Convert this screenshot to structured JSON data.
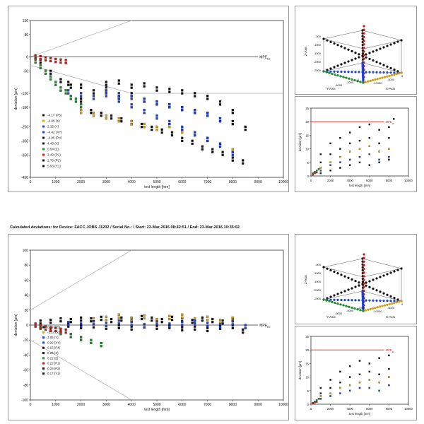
{
  "header_text": "Calculated deviations:  for Device:  FACC JOBS J1202 / Serial No.:  / Start:  23-Mar-2016 08:42:51 / End:  23-Mar-2016 10:35:02",
  "mpe_label": "MPE",
  "mpe_subscript": "E0",
  "colors": {
    "black": "#111111",
    "gold": "#d4a017",
    "blue": "#1f3fd0",
    "green": "#1f8a2a",
    "red": "#c81818",
    "gray": "#b5b5b5",
    "mpe_line": "#9a9a9a",
    "mpe_red": "#e02020"
  },
  "chart_data": [
    {
      "id": "top-main",
      "type": "scatter",
      "xlabel": "test length [mm]",
      "ylabel": "deviation [µm]",
      "xlim": [
        0,
        10000
      ],
      "ylim": [
        -430,
        130
      ],
      "xticks": [
        0,
        1000,
        2000,
        3000,
        4000,
        5000,
        6000,
        7000,
        8000,
        9000,
        10000
      ],
      "yticks": [
        130,
        80,
        0,
        -50,
        -130,
        -180,
        -250,
        -300,
        -350,
        -430
      ],
      "mpe_y": 0,
      "envelope_upper": [
        [
          0,
          0
        ],
        [
          4000,
          130
        ]
      ],
      "envelope_lower": [
        [
          0,
          -30
        ],
        [
          4000,
          -130
        ],
        [
          10000,
          -130
        ]
      ],
      "legend": [
        {
          "label": "-4.17 (P5)",
          "color": "#111111"
        },
        {
          "label": "-4.89 (X)",
          "color": "#d4a017"
        },
        {
          "label": "2.35 (Y)",
          "color": "#1f3fd0"
        },
        {
          "label": "-4.42 (XY)",
          "color": "#1f3fd0"
        },
        {
          "label": "-4.05 (P4)",
          "color": "#111111"
        },
        {
          "label": "4.45 (X)",
          "color": "#111111"
        },
        {
          "label": "0.54 (Z)",
          "color": "#1f8a2a"
        },
        {
          "label": "2.49 (P1)",
          "color": "#c81818"
        },
        {
          "label": "2.76 (P2)",
          "color": "#111111"
        },
        {
          "label": "5.93 (Y1)",
          "color": "#111111"
        }
      ],
      "series": [
        {
          "color": "#111111",
          "x": [
            400,
            800,
            1200,
            1600,
            2000,
            2400,
            2800,
            3200,
            3600,
            4000,
            4400,
            4800,
            5200,
            5600,
            6000,
            6400,
            6800,
            7200,
            7600,
            8000,
            8400
          ],
          "y": [
            -20,
            -60,
            -90,
            -110,
            -160,
            -200,
            -210,
            -220,
            -230,
            -240,
            -250,
            -260,
            -270,
            -280,
            -300,
            -310,
            -330,
            -340,
            -350,
            -370,
            -380
          ]
        },
        {
          "color": "#111111",
          "x": [
            1500,
            2000,
            2500,
            3000,
            3500,
            4000,
            4500,
            5000,
            5500,
            6000,
            6500,
            7000,
            7500,
            8000
          ],
          "y": [
            -100,
            -110,
            -130,
            -120,
            -150,
            -140,
            -160,
            -170,
            -180,
            -190,
            -200,
            -210,
            -230,
            -240
          ]
        },
        {
          "color": "#111111",
          "x": [
            3000,
            3500,
            4000,
            4500,
            5000,
            5500,
            6000,
            6500,
            7000,
            7500,
            8000,
            8500
          ],
          "y": [
            -100,
            -95,
            -110,
            -105,
            -120,
            -125,
            -130,
            -140,
            -150,
            -170,
            -200,
            -260
          ]
        },
        {
          "color": "#d4a017",
          "x": [
            2000,
            2500,
            3000,
            3500,
            4000,
            4500,
            5000,
            5500,
            6000,
            6500,
            7000,
            7500,
            8000
          ],
          "y": [
            -200,
            -210,
            -220,
            -230,
            -240,
            -250,
            -260,
            -250,
            -270,
            -280,
            -300,
            -320,
            -340
          ]
        },
        {
          "color": "#1f3fd0",
          "x": [
            1500,
            2000,
            2500,
            3000,
            3500,
            4000,
            4500,
            5000,
            5500,
            6000,
            6500,
            7000,
            7500,
            8000
          ],
          "y": [
            -130,
            -140,
            -150,
            -140,
            -160,
            -180,
            -200,
            -220,
            -240,
            -260,
            -280,
            -300,
            -320,
            -350
          ]
        },
        {
          "color": "#1f3fd0",
          "x": [
            3000,
            3500,
            4000,
            4500,
            5000,
            5500,
            6000,
            6500,
            7000,
            7500
          ],
          "y": [
            -130,
            -140,
            -150,
            -160,
            -170,
            -180,
            -190,
            -200,
            -210,
            -230
          ]
        },
        {
          "color": "#1f8a2a",
          "x": [
            200,
            400,
            600,
            800,
            1000,
            1200,
            1400,
            1600,
            1800,
            2000
          ],
          "y": [
            -20,
            -40,
            -60,
            -80,
            -100,
            -120,
            -130,
            -150,
            -160,
            -180
          ]
        },
        {
          "color": "#c81818",
          "x": [
            200,
            400,
            600,
            800,
            1000,
            1200,
            1400
          ],
          "y": [
            -5,
            -8,
            -12,
            -15,
            -18,
            -20,
            -22
          ]
        }
      ]
    },
    {
      "id": "bottom-main",
      "type": "scatter",
      "xlabel": "test length [mm]",
      "ylabel": "deviation [µm]",
      "xlim": [
        0,
        10000
      ],
      "ylim": [
        -100,
        100
      ],
      "xticks": [
        0,
        1000,
        2000,
        3000,
        4000,
        5000,
        6000,
        7000,
        8000,
        9000,
        10000
      ],
      "yticks": [
        100,
        80,
        60,
        40,
        20,
        0,
        -20,
        -40,
        -60,
        -80,
        -100
      ],
      "mpe_y": 0,
      "envelope_upper": [
        [
          0,
          20
        ],
        [
          4000,
          100
        ]
      ],
      "envelope_lower": [
        [
          0,
          -20
        ],
        [
          4000,
          -100
        ]
      ],
      "legend": [
        {
          "label": "0.19 (P5)",
          "color": "#111111"
        },
        {
          "label": "-2.14 (X)",
          "color": "#d4a017"
        },
        {
          "label": "3.85 (Y)",
          "color": "#1f3fd0"
        },
        {
          "label": "0.29 (XY)",
          "color": "#1f3fd0"
        },
        {
          "label": "0.15 (P4)",
          "color": "#111111"
        },
        {
          "label": "0.28 (X)",
          "color": "#111111"
        },
        {
          "label": "0.22 (Z)",
          "color": "#1f8a2a"
        },
        {
          "label": "0.22 (P1)",
          "color": "#c81818"
        },
        {
          "label": "0.28 (P2)",
          "color": "#111111"
        },
        {
          "label": "0.17 (Y1)",
          "color": "#111111"
        }
      ],
      "series": [
        {
          "color": "#111111",
          "x": [
            400,
            800,
            1200,
            1600,
            2000,
            2400,
            2800,
            3200,
            3600,
            4000,
            4400,
            4800,
            5200,
            5600,
            6000,
            6400,
            6800,
            7200,
            7600,
            8000,
            8400
          ],
          "y": [
            2,
            3,
            5,
            4,
            6,
            5,
            7,
            4,
            6,
            5,
            8,
            6,
            4,
            7,
            5,
            3,
            6,
            4,
            2,
            5,
            -10
          ]
        },
        {
          "color": "#111111",
          "x": [
            1500,
            2000,
            2500,
            3000,
            3500,
            4000,
            4500,
            5000,
            5500,
            6000,
            6500,
            7000,
            7500,
            8000
          ],
          "y": [
            -2,
            -4,
            -3,
            -5,
            -4,
            -6,
            -3,
            -5,
            -4,
            -7,
            -6,
            -8,
            -5,
            -4
          ]
        },
        {
          "color": "#d4a017",
          "x": [
            2500,
            3000,
            3500,
            4000,
            4500,
            5000,
            5500,
            6000,
            6500,
            7000,
            7500,
            8000
          ],
          "y": [
            5,
            7,
            10,
            6,
            9,
            4,
            8,
            10,
            5,
            7,
            3,
            6
          ]
        },
        {
          "color": "#1f3fd0",
          "x": [
            1500,
            2000,
            2500,
            3000,
            3500,
            4000,
            4500,
            5000,
            5500,
            6000,
            6500,
            7000,
            7500,
            8000,
            8500
          ],
          "y": [
            0,
            -2,
            1,
            -1,
            2,
            0,
            -3,
            1,
            -2,
            0,
            2,
            -1,
            -3,
            1,
            -4
          ]
        },
        {
          "color": "#1f8a2a",
          "x": [
            400,
            800,
            1200,
            1600,
            2000,
            2400,
            2800
          ],
          "y": [
            -5,
            -8,
            -12,
            -16,
            -20,
            -24,
            -28
          ]
        },
        {
          "color": "#c81818",
          "x": [
            200,
            400,
            600,
            800,
            1000,
            1200,
            1400
          ],
          "y": [
            -2,
            -4,
            -6,
            -7,
            -8,
            -9,
            -10
          ]
        }
      ]
    },
    {
      "id": "top-small",
      "type": "scatter",
      "xlabel": "test length [mm]",
      "ylabel": "deviation [µm]",
      "xlim": [
        0,
        10000
      ],
      "ylim": [
        0,
        25
      ],
      "xticks": [
        0,
        2000,
        4000,
        6000,
        8000,
        10000
      ],
      "yticks": [
        0,
        5,
        10,
        15,
        20,
        25
      ],
      "mpe_y": 20,
      "series": [
        {
          "color": "#111111",
          "x": [
            1000,
            2000,
            3000,
            4000,
            5000,
            6000,
            7000,
            8000
          ],
          "y": [
            8,
            12,
            14,
            16,
            18,
            19,
            17,
            18
          ]
        },
        {
          "color": "#111111",
          "x": [
            1000,
            2000,
            3000,
            4000,
            5000,
            6000,
            7000,
            8000
          ],
          "y": [
            5,
            8,
            10,
            12,
            13,
            14,
            12,
            14
          ]
        },
        {
          "color": "#d4a017",
          "x": [
            1000,
            2000,
            3000,
            4000,
            5000,
            6000,
            7000,
            8000
          ],
          "y": [
            3,
            5,
            7,
            9,
            10,
            11,
            9,
            10
          ]
        },
        {
          "color": "#1f3fd0",
          "x": [
            1000,
            2000,
            3000,
            4000,
            5000,
            6000,
            7000,
            8000
          ],
          "y": [
            2,
            4,
            5,
            6,
            7,
            8,
            6,
            7
          ]
        },
        {
          "color": "#111111",
          "x": [
            1000,
            2000,
            3000,
            4000,
            5000,
            6000,
            7000,
            8000,
            8500
          ],
          "y": [
            1,
            2,
            3,
            4,
            5,
            4,
            5,
            6,
            21
          ]
        },
        {
          "color": "#1f8a2a",
          "x": [
            200,
            400,
            600,
            800
          ],
          "y": [
            1,
            1.5,
            2,
            2.5
          ]
        },
        {
          "color": "#c81818",
          "x": [
            200,
            400,
            600
          ],
          "y": [
            0.5,
            1,
            1.3
          ]
        }
      ]
    },
    {
      "id": "bottom-small",
      "type": "scatter",
      "xlabel": "test length [mm]",
      "ylabel": "deviation [µm]",
      "xlim": [
        0,
        10000
      ],
      "ylim": [
        0,
        25
      ],
      "xticks": [
        0,
        2000,
        4000,
        6000,
        8000,
        10000
      ],
      "yticks": [
        0,
        5,
        10,
        15,
        20,
        25
      ],
      "mpe_y": 20,
      "series": [
        {
          "color": "#111111",
          "x": [
            1000,
            2000,
            3000,
            4000,
            5000,
            6000,
            7000,
            8000
          ],
          "y": [
            6,
            9,
            12,
            14,
            16,
            15,
            17,
            18
          ]
        },
        {
          "color": "#111111",
          "x": [
            1000,
            2000,
            3000,
            4000,
            5000,
            6000,
            7000,
            8000
          ],
          "y": [
            4,
            6,
            8,
            10,
            11,
            12,
            11,
            13
          ]
        },
        {
          "color": "#d4a017",
          "x": [
            1000,
            2000,
            3000,
            4000,
            5000,
            6000,
            7000,
            8000
          ],
          "y": [
            3,
            4,
            6,
            7,
            8,
            9,
            8,
            10
          ]
        },
        {
          "color": "#1f3fd0",
          "x": [
            1000,
            2000,
            3000,
            4000,
            5000,
            6000,
            7000,
            8000
          ],
          "y": [
            2,
            3,
            4,
            5,
            6,
            6,
            5,
            7
          ]
        },
        {
          "color": "#1f8a2a",
          "x": [
            200,
            400,
            600,
            800
          ],
          "y": [
            0.5,
            1,
            1.5,
            2
          ]
        },
        {
          "color": "#c81818",
          "x": [
            200,
            400,
            600
          ],
          "y": [
            0.3,
            0.6,
            0.9
          ]
        }
      ]
    }
  ],
  "cube_top": {
    "z_ticks": [
      "-500",
      "-1000",
      "-1500",
      "-2000",
      "-2500"
    ],
    "z_label": "Z-Axis",
    "x_label": "X-Axis",
    "y_label": "Y-Axis",
    "x_ticks": [
      "-10000",
      "-5000",
      "0"
    ],
    "y_ticks": [
      "-4000",
      "-2000",
      "0"
    ]
  },
  "cube_bottom": {
    "z_ticks": [
      "-500",
      "-1000",
      "-1500",
      "-2000",
      "-2500"
    ],
    "z_label": "Z-Axis",
    "x_label": "X-Axis",
    "y_label": "Y-Axis",
    "x_ticks": [
      "-10000",
      "-5000",
      "0"
    ],
    "y_ticks": [
      "-6000",
      "-4000",
      "-2000"
    ]
  }
}
